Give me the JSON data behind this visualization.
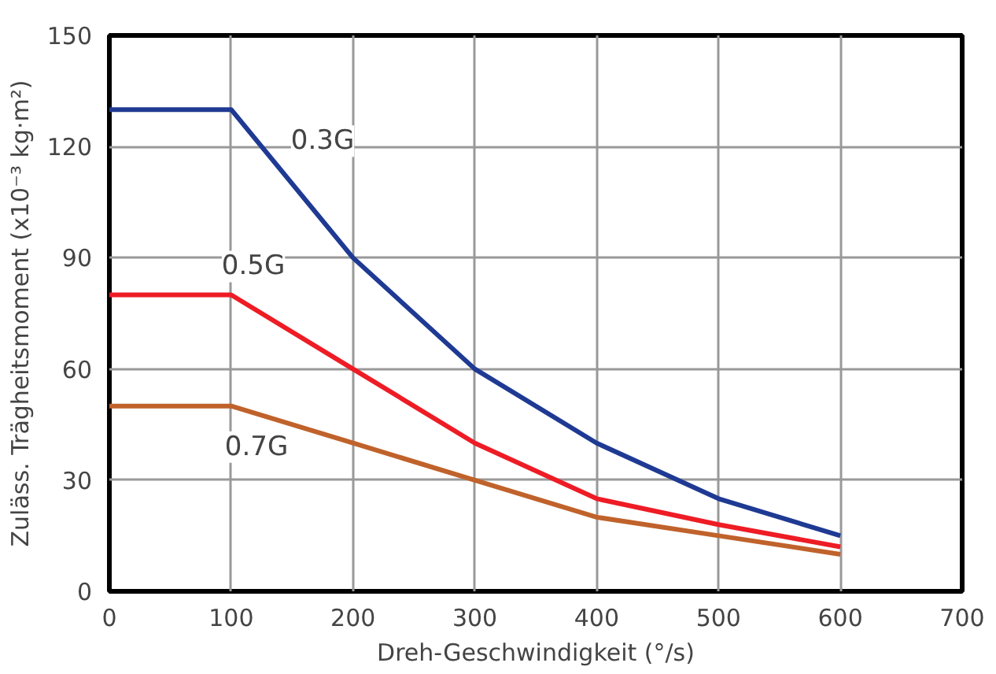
{
  "chart_data": {
    "type": "line",
    "xlabel": "Dreh-Geschwindigkeit (°/s)",
    "ylabel": "Zuläss. Trägheitsmoment (x10⁻³ kg·m²)",
    "x": [
      0,
      100,
      200,
      300,
      400,
      500,
      600
    ],
    "series": [
      {
        "name": "0.3G",
        "color": "#1f3a93",
        "values": [
          130,
          130,
          90,
          60,
          40,
          25,
          15
        ]
      },
      {
        "name": "0.5G",
        "color": "#ee1c25",
        "values": [
          80,
          80,
          60,
          40,
          25,
          18,
          12
        ]
      },
      {
        "name": "0.7G",
        "color": "#c0622b",
        "values": [
          50,
          50,
          40,
          30,
          20,
          15,
          10
        ]
      }
    ],
    "xlim": [
      0,
      700
    ],
    "ylim": [
      0,
      150
    ],
    "xticks": [
      0,
      100,
      200,
      300,
      400,
      500,
      600,
      700
    ],
    "yticks": [
      0,
      30,
      60,
      90,
      120,
      150
    ],
    "grid": true,
    "legend": false,
    "marker": "none",
    "line_style": "solid"
  }
}
